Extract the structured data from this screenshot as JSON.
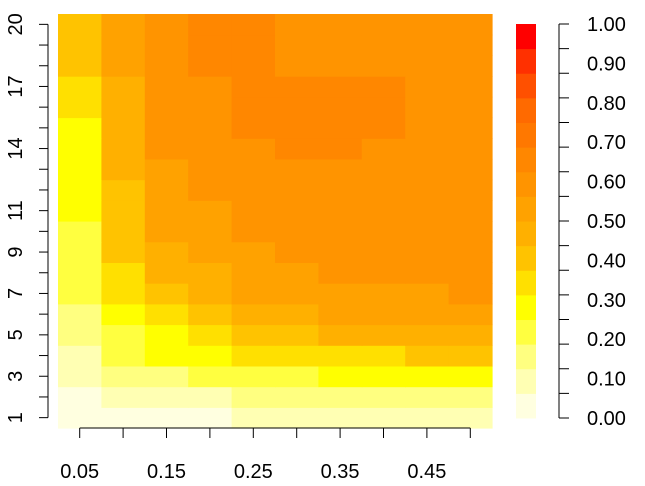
{
  "chart_data": {
    "type": "heatmap",
    "title": "",
    "xlabel": "",
    "ylabel": "",
    "x_values": [
      0.05,
      0.1,
      0.15,
      0.2,
      0.25,
      0.3,
      0.35,
      0.4,
      0.45,
      0.5
    ],
    "y_values": [
      1,
      2,
      3,
      4,
      5,
      6,
      7,
      8,
      9,
      10,
      11,
      12,
      13,
      14,
      15,
      16,
      17,
      18,
      19,
      20
    ],
    "x_tick_labels": [
      "0.05",
      "0.15",
      "0.25",
      "0.35",
      "0.45"
    ],
    "x_tick_values": [
      0.05,
      0.15,
      0.25,
      0.35,
      0.45
    ],
    "x_minor_ticks": [
      0.05,
      0.1,
      0.15,
      0.2,
      0.25,
      0.3,
      0.35,
      0.4,
      0.45,
      0.5
    ],
    "y_tick_labels": [
      "1",
      "3",
      "5",
      "7",
      "9",
      "11",
      "14",
      "17",
      "20"
    ],
    "y_tick_values": [
      1,
      3,
      5,
      7,
      9,
      11,
      14,
      17,
      20
    ],
    "legend_tick_labels": [
      "0.00",
      "0.10",
      "0.20",
      "0.30",
      "0.40",
      "0.50",
      "0.60",
      "0.70",
      "0.80",
      "0.90",
      "1.00"
    ],
    "legend_range": [
      0,
      1
    ],
    "legend_placement": "right",
    "color_scale": [
      "#FFFFE0",
      "#FFFFB3",
      "#FFFF80",
      "#FFFF40",
      "#FFFF00",
      "#FFE000",
      "#FFC300",
      "#FFB000",
      "#FFA200",
      "#FF9400",
      "#FF8700",
      "#FF7800",
      "#FF6A00",
      "#FF5000",
      "#FF3000",
      "#FF0000"
    ],
    "values": [
      [
        0.02,
        0.03,
        0.05,
        0.06,
        0.07,
        0.08,
        0.08,
        0.09,
        0.1,
        0.12
      ],
      [
        0.05,
        0.07,
        0.1,
        0.12,
        0.14,
        0.16,
        0.16,
        0.17,
        0.17,
        0.18
      ],
      [
        0.1,
        0.15,
        0.17,
        0.2,
        0.22,
        0.23,
        0.25,
        0.25,
        0.26,
        0.26
      ],
      [
        0.12,
        0.2,
        0.25,
        0.28,
        0.33,
        0.35,
        0.35,
        0.35,
        0.38,
        0.38
      ],
      [
        0.14,
        0.23,
        0.3,
        0.35,
        0.38,
        0.42,
        0.45,
        0.45,
        0.47,
        0.48
      ],
      [
        0.18,
        0.28,
        0.35,
        0.42,
        0.45,
        0.48,
        0.5,
        0.53,
        0.53,
        0.55
      ],
      [
        0.2,
        0.33,
        0.4,
        0.45,
        0.5,
        0.52,
        0.53,
        0.55,
        0.55,
        0.57
      ],
      [
        0.22,
        0.35,
        0.45,
        0.48,
        0.52,
        0.55,
        0.57,
        0.57,
        0.58,
        0.58
      ],
      [
        0.22,
        0.38,
        0.47,
        0.5,
        0.53,
        0.57,
        0.57,
        0.58,
        0.58,
        0.6
      ],
      [
        0.24,
        0.4,
        0.5,
        0.53,
        0.57,
        0.58,
        0.6,
        0.6,
        0.6,
        0.6
      ],
      [
        0.26,
        0.4,
        0.5,
        0.55,
        0.58,
        0.6,
        0.6,
        0.6,
        0.6,
        0.6
      ],
      [
        0.28,
        0.42,
        0.53,
        0.57,
        0.6,
        0.62,
        0.62,
        0.6,
        0.6,
        0.6
      ],
      [
        0.3,
        0.44,
        0.55,
        0.57,
        0.62,
        0.62,
        0.62,
        0.6,
        0.6,
        0.6
      ],
      [
        0.3,
        0.45,
        0.57,
        0.6,
        0.62,
        0.63,
        0.63,
        0.62,
        0.6,
        0.6
      ],
      [
        0.3,
        0.46,
        0.58,
        0.62,
        0.63,
        0.63,
        0.63,
        0.63,
        0.6,
        0.6
      ],
      [
        0.32,
        0.47,
        0.6,
        0.62,
        0.63,
        0.63,
        0.63,
        0.63,
        0.6,
        0.6
      ],
      [
        0.35,
        0.48,
        0.6,
        0.62,
        0.63,
        0.63,
        0.63,
        0.63,
        0.6,
        0.6
      ],
      [
        0.38,
        0.5,
        0.6,
        0.63,
        0.63,
        0.62,
        0.62,
        0.62,
        0.6,
        0.6
      ],
      [
        0.4,
        0.5,
        0.6,
        0.65,
        0.65,
        0.62,
        0.62,
        0.62,
        0.6,
        0.6
      ],
      [
        0.42,
        0.52,
        0.6,
        0.65,
        0.65,
        0.62,
        0.62,
        0.62,
        0.6,
        0.6
      ]
    ]
  }
}
